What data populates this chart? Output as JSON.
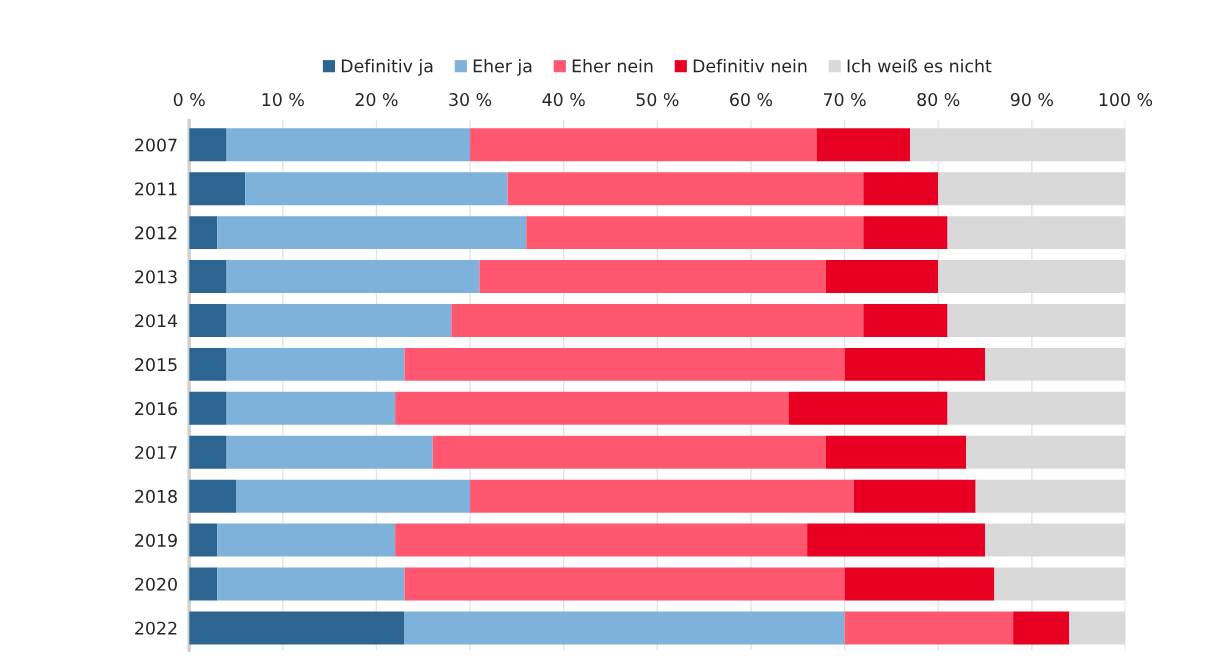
{
  "chart_data": {
    "type": "bar",
    "orientation": "horizontal",
    "stacked": true,
    "categories": [
      "2007",
      "2011",
      "2012",
      "2013",
      "2014",
      "2015",
      "2016",
      "2017",
      "2018",
      "2019",
      "2020",
      "2022"
    ],
    "series": [
      {
        "name": "Definitiv ja",
        "color": "#2c6591",
        "values": [
          4,
          6,
          3,
          4,
          4,
          4,
          4,
          4,
          5,
          3,
          3,
          23
        ]
      },
      {
        "name": "Eher ja",
        "color": "#7fb2da",
        "values": [
          26,
          28,
          33,
          27,
          24,
          19,
          18,
          22,
          25,
          19,
          20,
          47
        ]
      },
      {
        "name": "Eher nein",
        "color": "#ff5870",
        "values": [
          37,
          38,
          36,
          37,
          44,
          47,
          42,
          42,
          41,
          44,
          47,
          18
        ]
      },
      {
        "name": "Definitiv nein",
        "color": "#e80023",
        "values": [
          10,
          8,
          9,
          12,
          9,
          15,
          17,
          15,
          13,
          19,
          16,
          6
        ]
      },
      {
        "name": "Ich weiß es nicht",
        "color": "#d9d9d9",
        "values": [
          23,
          20,
          19,
          20,
          19,
          15,
          19,
          17,
          16,
          15,
          14,
          6
        ]
      }
    ],
    "xlim": [
      0,
      100
    ],
    "xticks": [
      {
        "value": 0,
        "label": "0 %"
      },
      {
        "value": 10,
        "label": "10 %"
      },
      {
        "value": 20,
        "label": "20 %"
      },
      {
        "value": 30,
        "label": "30 %"
      },
      {
        "value": 40,
        "label": "40 %"
      },
      {
        "value": 50,
        "label": "50 %"
      },
      {
        "value": 60,
        "label": "60 %"
      },
      {
        "value": 70,
        "label": "70 %"
      },
      {
        "value": 80,
        "label": "80 %"
      },
      {
        "value": 90,
        "label": "90 %"
      },
      {
        "value": 100,
        "label": "100 %"
      }
    ],
    "grid": "x",
    "legend": "top"
  }
}
